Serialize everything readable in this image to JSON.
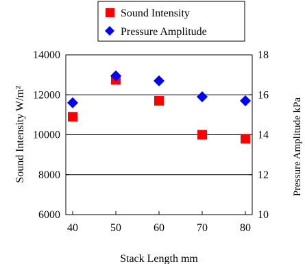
{
  "chart_data": {
    "type": "scatter",
    "xlabel": "Stack Length mm",
    "ylabel_left": "Sound Intensity W/m²",
    "ylabel_right": "Pressure Amplitude kPa",
    "x_ticks": [
      "40",
      "50",
      "60",
      "70",
      "80"
    ],
    "xlim": [
      40,
      80
    ],
    "ylim_left": [
      6000,
      14000
    ],
    "y_ticks_left": [
      "6000",
      "8000",
      "10000",
      "12000",
      "14000"
    ],
    "ylim_right": [
      10,
      18
    ],
    "y_ticks_right": [
      "10",
      "12",
      "14",
      "16",
      "18"
    ],
    "grid": "horizontal",
    "legend_position": "top",
    "series": [
      {
        "name": "Sound Intensity",
        "axis": "left",
        "marker": "square",
        "color": "#ff0000",
        "x": [
          40,
          50,
          60,
          70,
          80
        ],
        "y": [
          10900,
          12750,
          11700,
          10000,
          9800
        ]
      },
      {
        "name": "Pressure Amplitude",
        "axis": "right",
        "marker": "diamond",
        "color": "#0000ff",
        "x": [
          40,
          50,
          60,
          70,
          80
        ],
        "y": [
          15.6,
          16.95,
          16.7,
          15.9,
          15.7
        ]
      }
    ]
  }
}
